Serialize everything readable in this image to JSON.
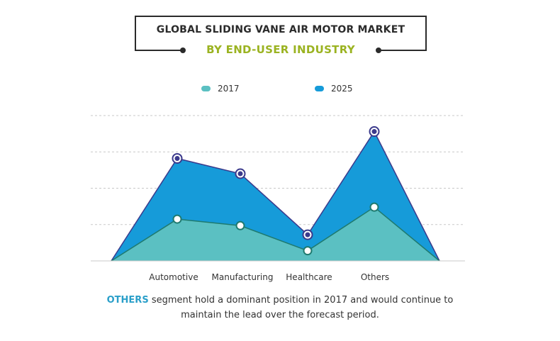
{
  "title": "GLOBAL SLIDING VANE AIR MOTOR MARKET",
  "subtitle": "BY END-USER INDUSTRY",
  "legend": [
    {
      "label": "2017",
      "color": "#5bc0c2"
    },
    {
      "label": "2025",
      "color": "#169bd9"
    }
  ],
  "footer": {
    "highlight": "OTHERS",
    "text": " segment hold a dominant position in 2017 and would continue to maintain the lead over the forecast period."
  },
  "colors": {
    "series_2017_fill": "#5bc0c2",
    "series_2017_line": "#1f7a6f",
    "series_2025_fill": "#169bd9",
    "series_2025_line": "#3b3a8c",
    "grid": "#c8c8c8"
  },
  "chart_data": {
    "type": "area",
    "categories": [
      "Automotive",
      "Manufacturing",
      "Healthcare",
      "Others"
    ],
    "series": [
      {
        "name": "2017",
        "values": [
          1.15,
          0.97,
          0.28,
          1.48
        ]
      },
      {
        "name": "2025",
        "values": [
          2.82,
          2.4,
          0.72,
          3.56
        ]
      }
    ],
    "ylim": [
      0,
      4
    ],
    "grid": true,
    "legend_position": "top-center"
  }
}
